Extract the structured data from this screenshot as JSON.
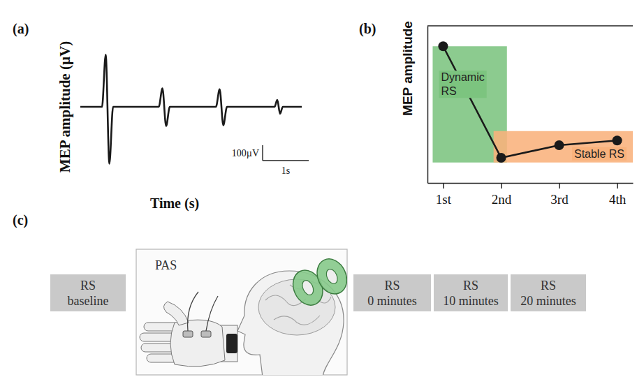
{
  "panels": [
    "(a)",
    "(b)",
    "(c)"
  ],
  "chart_data": [
    {
      "type": "line",
      "x_label": "Time (s)",
      "y_label": "MEP amplitude (µV)",
      "x": [
        0,
        0.47,
        0.55,
        0.63,
        0.71,
        1.7,
        1.78,
        1.86,
        1.94,
        2.94,
        3.02,
        3.1,
        3.18,
        4.21,
        4.27,
        4.33,
        4.39,
        4.8
      ],
      "values": [
        0,
        0,
        340,
        -370,
        0,
        0,
        120,
        -125,
        0,
        0,
        115,
        -120,
        0,
        0,
        45,
        -45,
        0,
        0
      ],
      "xlim": [
        0,
        4.8
      ],
      "ylim": [
        -400,
        400
      ],
      "tick_labels": false,
      "color": "#1a1a1a",
      "scale_bar": {
        "y": 100,
        "y_label": "100µV",
        "x": 1,
        "x_label": "1s"
      }
    },
    {
      "type": "line",
      "y_label": "MEP amplitude",
      "categories": [
        "1st",
        "2nd",
        "3rd",
        "4th"
      ],
      "values": [
        0.87,
        0.16,
        0.24,
        0.27
      ],
      "ylim": [
        0,
        1
      ],
      "tick_labels": "x",
      "color": "#1a1a1a",
      "marker": "circle",
      "regions": [
        {
          "label": "Dynamic RS",
          "x": [
            -0.18,
            1.1
          ],
          "y": [
            0.13,
            0.87
          ],
          "color": "#7cc47f"
        },
        {
          "label": "Stable RS",
          "x": [
            0.87,
            3.3
          ],
          "y": [
            0.13,
            0.33
          ],
          "color": "#f9b27c"
        }
      ]
    }
  ],
  "protocol": {
    "before": [
      [
        "RS",
        "baseline"
      ]
    ],
    "stimulation": "PAS",
    "after": [
      [
        "RS",
        "0 minutes"
      ],
      [
        "RS",
        "10 minutes"
      ],
      [
        "RS",
        "20 minutes"
      ]
    ]
  }
}
